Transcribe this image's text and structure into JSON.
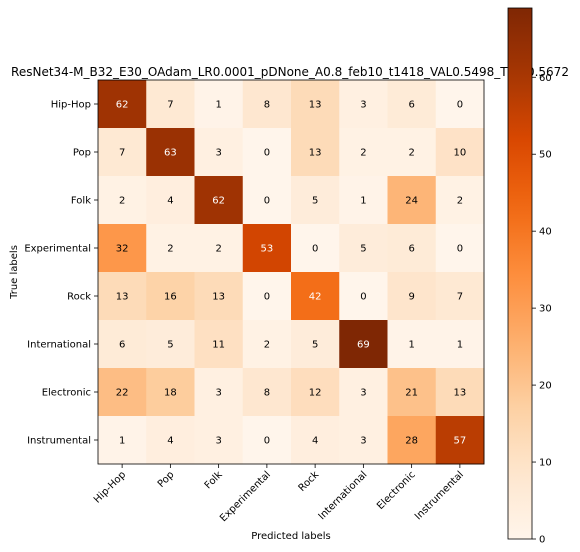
{
  "chart_data": {
    "type": "heatmap",
    "title": "ResNet34-M_B32_E30_OAdam_LR0.0001_pDNone_A0.8_feb10_t1418_VAL0.5498_TR...0.5672",
    "xlabel": "Predicted labels",
    "ylabel": "True labels",
    "x_categories": [
      "Hip-Hop",
      "Pop",
      "Folk",
      "Experimental",
      "Rock",
      "International",
      "Electronic",
      "Instrumental"
    ],
    "y_categories": [
      "Hip-Hop",
      "Pop",
      "Folk",
      "Experimental",
      "Rock",
      "International",
      "Electronic",
      "Instrumental"
    ],
    "matrix": [
      [
        62,
        7,
        1,
        8,
        13,
        3,
        6,
        0
      ],
      [
        7,
        63,
        3,
        0,
        13,
        2,
        2,
        10
      ],
      [
        2,
        4,
        62,
        0,
        5,
        1,
        24,
        2
      ],
      [
        32,
        2,
        2,
        53,
        0,
        5,
        6,
        0
      ],
      [
        13,
        16,
        13,
        0,
        42,
        0,
        9,
        7
      ],
      [
        6,
        5,
        11,
        2,
        5,
        69,
        1,
        1
      ],
      [
        22,
        18,
        3,
        8,
        12,
        3,
        21,
        13
      ],
      [
        1,
        4,
        3,
        0,
        4,
        3,
        28,
        57
      ]
    ],
    "colormap": "Oranges",
    "colorbar": {
      "range": [
        0,
        69
      ],
      "ticks": [
        0,
        10,
        20,
        30,
        40,
        50,
        60
      ]
    },
    "grid": false
  }
}
